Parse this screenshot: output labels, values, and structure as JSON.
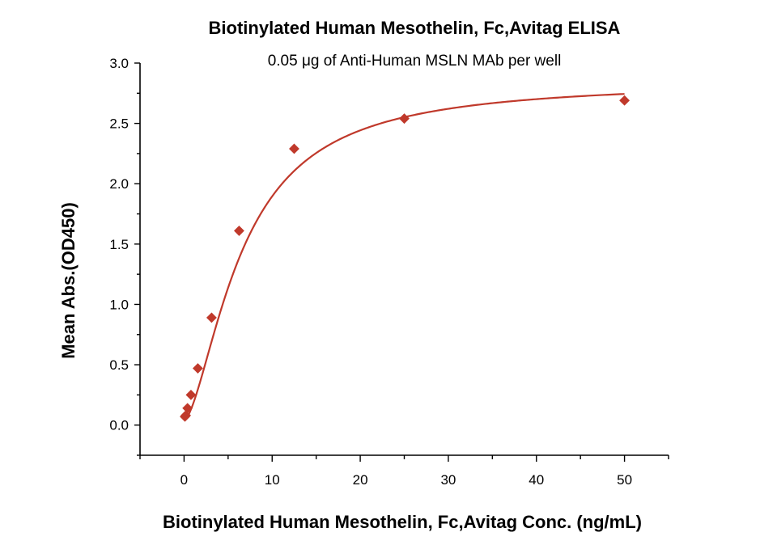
{
  "chart_data": {
    "type": "scatter",
    "title": "Biotinylated Human Mesothelin, Fc,Avitag ELISA",
    "subtitle": "0.05 μg of Anti-Human MSLN MAb per well",
    "xlabel": "Biotinylated Human Mesothelin, Fc,Avitag Conc. (ng/mL)",
    "ylabel": "Mean Abs.(OD450)",
    "xlim": [
      -5,
      55
    ],
    "ylim": [
      -0.25,
      3.0
    ],
    "xticks": [
      0,
      10,
      20,
      30,
      40,
      50
    ],
    "yticks": [
      0.0,
      0.5,
      1.0,
      1.5,
      2.0,
      2.5,
      3.0
    ],
    "x_tick_labels": [
      "0",
      "10",
      "20",
      "30",
      "40",
      "50"
    ],
    "y_tick_labels": [
      "0.0",
      "0.5",
      "1.0",
      "1.5",
      "2.0",
      "2.5",
      "3.0"
    ],
    "grid": false,
    "marker": "diamond",
    "color": "#c0392b",
    "series": [
      {
        "x": [
          0.098,
          0.195,
          0.391,
          0.781,
          1.563,
          3.125,
          6.25,
          12.5,
          25,
          50
        ],
        "y": [
          0.07,
          0.08,
          0.14,
          0.25,
          0.47,
          0.89,
          1.61,
          2.29,
          2.54,
          2.69
        ]
      }
    ],
    "fit_curve": {
      "model": "4PL",
      "bottom": 0.04,
      "top": 2.85,
      "ec50": 6.6,
      "hill": 1.6
    }
  }
}
